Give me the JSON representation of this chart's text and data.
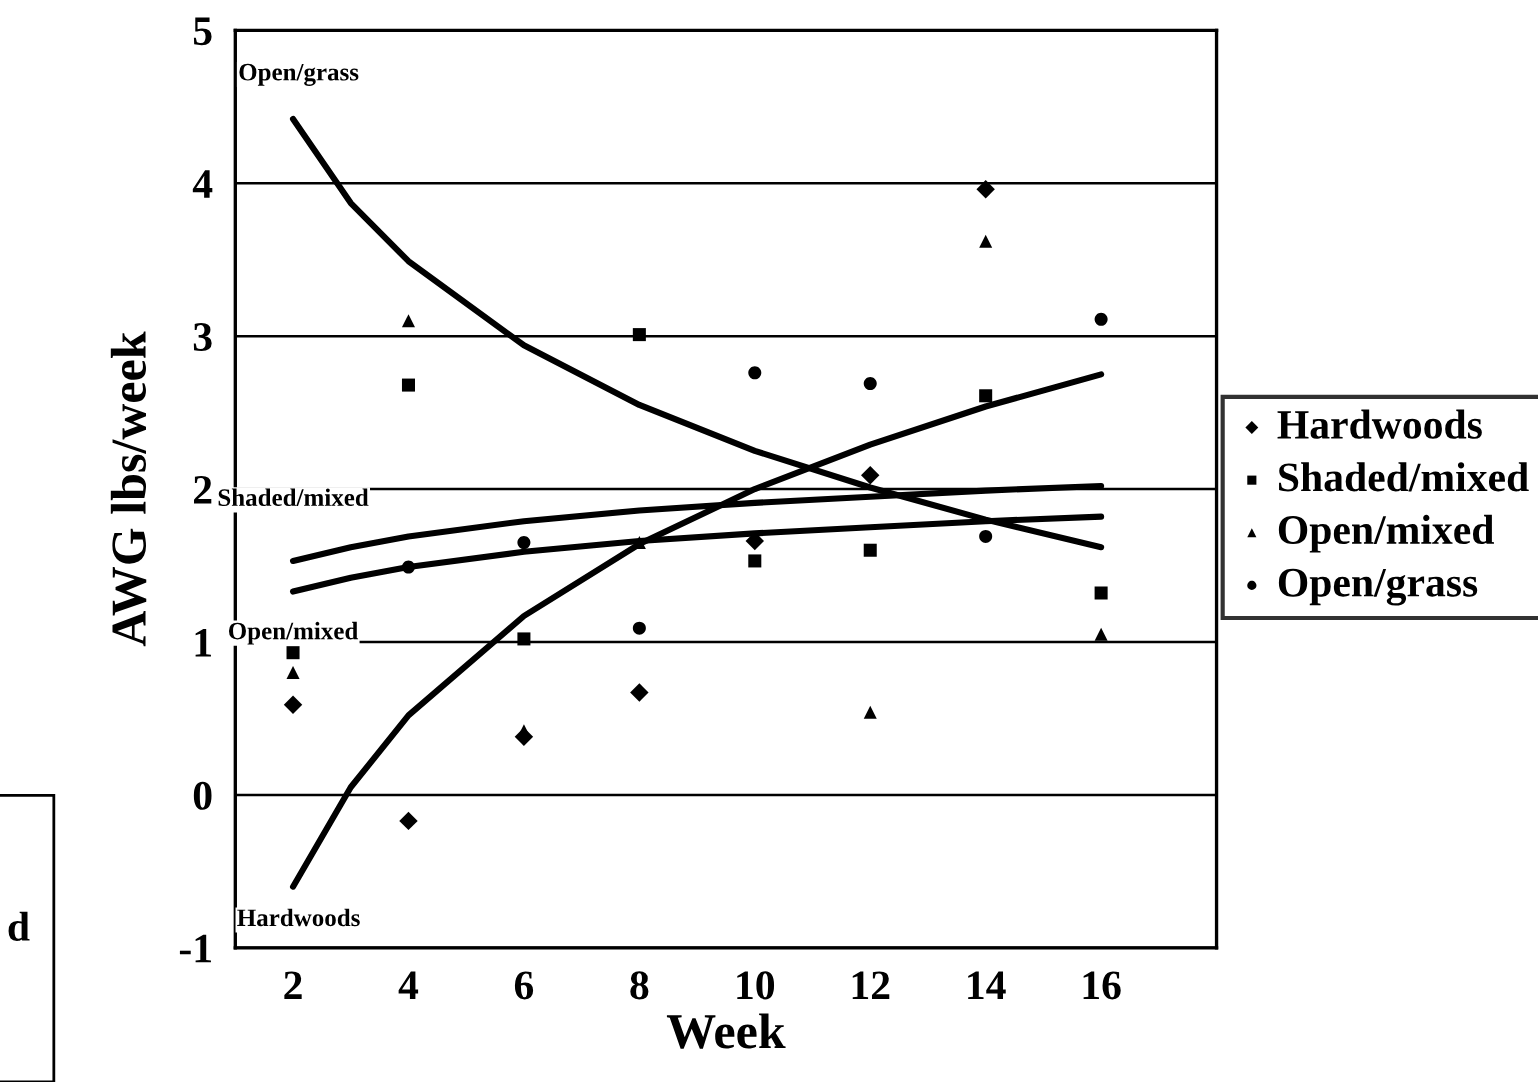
{
  "chart_data": {
    "type": "scatter",
    "xlabel": "Week",
    "ylabel": "AWG lbs/week",
    "x": [
      2,
      4,
      6,
      8,
      10,
      12,
      14,
      16
    ],
    "xlim": [
      1,
      18
    ],
    "xticks": [
      2,
      4,
      6,
      8,
      10,
      12,
      14,
      16
    ],
    "ylim": [
      -1,
      5
    ],
    "yticks": [
      -1,
      0,
      1,
      2,
      3,
      4,
      5
    ],
    "grid": "y",
    "legend": "right",
    "series": [
      {
        "name": "Hardwoods",
        "color": "#000000",
        "marker": "diamond",
        "values": [
          0.59,
          -0.17,
          0.38,
          0.67,
          1.66,
          2.09,
          3.96,
          null
        ]
      },
      {
        "name": "Shaded/mixed",
        "color": "#000000",
        "marker": "square",
        "values": [
          0.93,
          2.68,
          1.02,
          3.01,
          1.53,
          1.6,
          2.61,
          1.32
        ]
      },
      {
        "name": "Open/mixed",
        "color": "#000000",
        "marker": "triangle",
        "values": [
          0.8,
          3.1,
          0.42,
          1.65,
          null,
          0.54,
          3.62,
          1.05
        ]
      },
      {
        "name": "Open/grass",
        "color": "#000000",
        "marker": "circle",
        "values": [
          null,
          1.49,
          1.65,
          1.09,
          2.76,
          2.69,
          1.69,
          3.11
        ]
      },
      {
        "type": "line",
        "color": "#000000",
        "x": [
          2,
          3,
          4,
          6,
          8,
          10,
          12,
          14,
          16
        ],
        "values": [
          4.42,
          3.87,
          3.49,
          2.94,
          2.55,
          2.25,
          2.01,
          1.8,
          1.62
        ]
      },
      {
        "type": "line",
        "color": "#000000",
        "x": [
          2,
          3,
          4,
          6,
          8,
          10,
          12,
          14,
          16
        ],
        "values": [
          1.53,
          1.62,
          1.69,
          1.79,
          1.86,
          1.91,
          1.95,
          1.99,
          2.02
        ]
      },
      {
        "type": "line",
        "color": "#000000",
        "x": [
          2,
          3,
          4,
          6,
          8,
          10,
          12,
          14,
          16
        ],
        "values": [
          1.33,
          1.42,
          1.49,
          1.59,
          1.66,
          1.71,
          1.75,
          1.79,
          1.82
        ]
      },
      {
        "type": "line",
        "color": "#000000",
        "x": [
          2,
          3,
          4,
          6,
          8,
          10,
          12,
          14,
          16
        ],
        "values": [
          -0.6,
          0.05,
          0.52,
          1.17,
          1.64,
          2.0,
          2.29,
          2.54,
          2.75
        ]
      }
    ],
    "annotations": [
      "Open/grass",
      "Shaded/mixed",
      "Open/mixed",
      "Hardwoods",
      "d"
    ]
  }
}
